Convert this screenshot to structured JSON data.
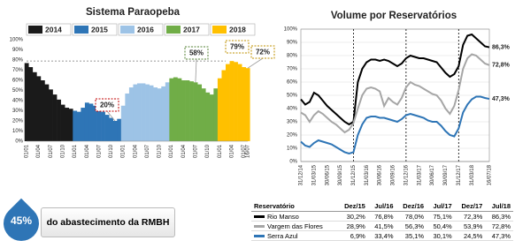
{
  "chart_data": [
    {
      "type": "area",
      "title": "Sistema Paraopeba",
      "grid": false,
      "legend": "top",
      "categories": [
        "01/01",
        null,
        null,
        "01/04",
        null,
        null,
        "01/07",
        null,
        null,
        "01/10",
        null,
        null,
        "01/01",
        null,
        null,
        "01/04",
        null,
        null,
        "01/07",
        null,
        null,
        "01/10",
        null,
        null,
        "01/01",
        null,
        null,
        "01/04",
        null,
        null,
        "01/07",
        null,
        null,
        "01/10",
        null,
        null,
        "01/01",
        null,
        null,
        "01/04",
        null,
        null,
        "01/07",
        null,
        null,
        "01/10",
        null,
        null,
        "01/01",
        null,
        null,
        "01/04",
        null,
        null,
        "01/07",
        "16/07"
      ],
      "ylim": [
        0,
        100
      ],
      "yticks": [
        {
          "value": 0,
          "label": "0%"
        },
        {
          "value": 10,
          "label": "10%"
        },
        {
          "value": 20,
          "label": "20%"
        },
        {
          "value": 30,
          "label": "30%"
        },
        {
          "value": 40,
          "label": "40%"
        },
        {
          "value": 50,
          "label": "50%"
        },
        {
          "value": 60,
          "label": "60%"
        },
        {
          "value": 70,
          "label": "70%"
        },
        {
          "value": 80,
          "label": "80%"
        },
        {
          "value": 90,
          "label": "90%"
        },
        {
          "value": 100,
          "label": "100%"
        }
      ],
      "series": [
        {
          "name": "2014",
          "color": "#1a1a1a",
          "values": [
            77,
            73,
            68,
            64,
            60,
            56,
            51,
            46,
            41,
            36,
            33,
            32,
            null,
            null,
            null,
            null,
            null,
            null,
            null,
            null,
            null,
            null,
            null,
            null,
            null,
            null,
            null,
            null,
            null,
            null,
            null,
            null,
            null,
            null,
            null,
            null,
            null,
            null,
            null,
            null,
            null,
            null,
            null,
            null,
            null,
            null,
            null,
            null,
            null,
            null,
            null,
            null,
            null,
            null,
            null,
            null
          ]
        },
        {
          "name": "2015",
          "color": "#2e75b6",
          "values": [
            null,
            null,
            null,
            null,
            null,
            null,
            null,
            null,
            null,
            null,
            null,
            null,
            30,
            29,
            33,
            38,
            37,
            35,
            32,
            29,
            26,
            23,
            20,
            22,
            null,
            null,
            null,
            null,
            null,
            null,
            null,
            null,
            null,
            null,
            null,
            null,
            null,
            null,
            null,
            null,
            null,
            null,
            null,
            null,
            null,
            null,
            null,
            null,
            null,
            null,
            null,
            null,
            null,
            null,
            null,
            null
          ]
        },
        {
          "name": "2016",
          "color": "#9dc3e6",
          "values": [
            null,
            null,
            null,
            null,
            null,
            null,
            null,
            null,
            null,
            null,
            null,
            null,
            null,
            null,
            null,
            null,
            null,
            null,
            null,
            null,
            null,
            null,
            null,
            null,
            35,
            47,
            53,
            56,
            57,
            57,
            56,
            55,
            53,
            52,
            54,
            58,
            null,
            null,
            null,
            null,
            null,
            null,
            null,
            null,
            null,
            null,
            null,
            null,
            null,
            null,
            null,
            null,
            null,
            null,
            null,
            null
          ]
        },
        {
          "name": "2017",
          "color": "#70ad47",
          "values": [
            null,
            null,
            null,
            null,
            null,
            null,
            null,
            null,
            null,
            null,
            null,
            null,
            null,
            null,
            null,
            null,
            null,
            null,
            null,
            null,
            null,
            null,
            null,
            null,
            null,
            null,
            null,
            null,
            null,
            null,
            null,
            null,
            null,
            null,
            null,
            null,
            62,
            63,
            62,
            60,
            60,
            59,
            58,
            56,
            52,
            48,
            46,
            52,
            null,
            null,
            null,
            null,
            null,
            null,
            null,
            null
          ]
        },
        {
          "name": "2018",
          "color": "#ffc000",
          "values": [
            null,
            null,
            null,
            null,
            null,
            null,
            null,
            null,
            null,
            null,
            null,
            null,
            null,
            null,
            null,
            null,
            null,
            null,
            null,
            null,
            null,
            null,
            null,
            null,
            null,
            null,
            null,
            null,
            null,
            null,
            null,
            null,
            null,
            null,
            null,
            null,
            null,
            null,
            null,
            null,
            null,
            null,
            null,
            null,
            null,
            null,
            null,
            null,
            62,
            70,
            76,
            79,
            78,
            76,
            73,
            72
          ]
        }
      ],
      "annotations": [
        {
          "text": "20%",
          "value": 20,
          "color": "#c00000"
        },
        {
          "text": "58%",
          "value": 58,
          "color": "#548235"
        },
        {
          "text": "79%",
          "value": 79,
          "color": "#bf9000"
        },
        {
          "text": "72%",
          "value": 72,
          "color": "#bf9000"
        }
      ]
    },
    {
      "type": "line",
      "title": "Volume por Reservatórios",
      "grid": true,
      "categories": [
        "31/12/14",
        null,
        null,
        "31/03/15",
        null,
        null,
        "30/06/15",
        null,
        null,
        "30/09/15",
        null,
        null,
        "31/12/15",
        null,
        null,
        "31/03/16",
        null,
        null,
        "30/06/16",
        null,
        null,
        "30/09/16",
        null,
        null,
        "31/12/16",
        null,
        null,
        "31/03/17",
        null,
        null,
        "30/06/17",
        null,
        null,
        "30/09/17",
        null,
        null,
        "31/12/17",
        null,
        null,
        "31/03/18",
        null,
        null,
        null,
        "16/07/18"
      ],
      "ylim": [
        0,
        100
      ],
      "yticks": [
        {
          "value": 0,
          "label": "0%"
        },
        {
          "value": 10,
          "label": "10%"
        },
        {
          "value": 20,
          "label": "20%"
        },
        {
          "value": 30,
          "label": "30%"
        },
        {
          "value": 40,
          "label": "40%"
        },
        {
          "value": 50,
          "label": "50%"
        },
        {
          "value": 60,
          "label": "60%"
        },
        {
          "value": 70,
          "label": "70%"
        },
        {
          "value": 80,
          "label": "80%"
        },
        {
          "value": 90,
          "label": "90%"
        },
        {
          "value": 100,
          "label": "100%"
        }
      ],
      "series": [
        {
          "name": "Rio Manso",
          "color": "#000000",
          "values": [
            47,
            43,
            45,
            52,
            50,
            46,
            42,
            39,
            36,
            33,
            30,
            28,
            30,
            60,
            70,
            75,
            77,
            77,
            76,
            77,
            76,
            74,
            72,
            74,
            78,
            80,
            79,
            78,
            78,
            77,
            76,
            75,
            71,
            67,
            64,
            66,
            72,
            88,
            95,
            96,
            93,
            90,
            87,
            86.3
          ],
          "value_labels": [
            null,
            null,
            null,
            null,
            null,
            null,
            null,
            null,
            null,
            null,
            null,
            null,
            null,
            null,
            null,
            null,
            null,
            null,
            null,
            null,
            null,
            null,
            null,
            null,
            null,
            null,
            null,
            null,
            null,
            null,
            null,
            null,
            null,
            null,
            null,
            null,
            null,
            null,
            null,
            null,
            null,
            null,
            null,
            "86,3%"
          ]
        },
        {
          "name": "Vargem das Flores",
          "color": "#a6a6a6",
          "values": [
            37,
            35,
            30,
            35,
            38,
            36,
            33,
            30,
            28,
            25,
            22,
            24,
            29,
            40,
            50,
            55,
            56,
            55,
            53,
            42,
            48,
            45,
            43,
            48,
            56,
            60,
            58,
            57,
            55,
            53,
            51,
            50,
            46,
            40,
            36,
            42,
            54,
            70,
            78,
            81,
            80,
            77,
            74,
            72.8
          ],
          "value_labels": [
            null,
            null,
            null,
            null,
            null,
            null,
            null,
            null,
            null,
            null,
            null,
            null,
            null,
            null,
            null,
            null,
            null,
            null,
            null,
            null,
            null,
            null,
            null,
            null,
            null,
            null,
            null,
            null,
            null,
            null,
            null,
            null,
            null,
            null,
            null,
            null,
            null,
            null,
            null,
            null,
            null,
            null,
            null,
            "72,8%"
          ]
        },
        {
          "name": "Serra Azul",
          "color": "#2e75b6",
          "values": [
            15,
            12,
            11,
            14,
            16,
            15,
            14,
            13,
            11,
            9,
            7,
            6,
            7,
            20,
            28,
            33,
            34,
            34,
            33,
            33,
            32,
            31,
            30,
            32,
            35,
            36,
            35,
            34,
            33,
            31,
            30,
            30,
            27,
            23,
            20,
            19,
            25,
            37,
            43,
            47,
            49,
            49,
            48,
            47.3
          ],
          "value_labels": [
            null,
            null,
            null,
            null,
            null,
            null,
            null,
            null,
            null,
            null,
            null,
            null,
            null,
            null,
            null,
            null,
            null,
            null,
            null,
            null,
            null,
            null,
            null,
            null,
            null,
            null,
            null,
            null,
            null,
            null,
            null,
            null,
            null,
            null,
            null,
            null,
            null,
            null,
            null,
            null,
            null,
            null,
            null,
            "47,3%"
          ]
        }
      ]
    }
  ],
  "table": {
    "header": [
      "Reservatório",
      "Dez/15",
      "Jul/16",
      "Dez/16",
      "Jul/17",
      "Dez/17",
      "Jul/18"
    ],
    "rows": [
      [
        "30,2%",
        "76,8%",
        "78,0%",
        "75,1%",
        "72,3%",
        "86,3%"
      ],
      [
        "28,9%",
        "41,5%",
        "56,3%",
        "50,4%",
        "53,9%",
        "72,8%"
      ],
      [
        "6,9%",
        "33,4%",
        "35,1%",
        "30,1%",
        "24,5%",
        "47,3%"
      ]
    ]
  },
  "badge": {
    "value_label": "45%",
    "text": "do abastecimento da RMBH"
  }
}
